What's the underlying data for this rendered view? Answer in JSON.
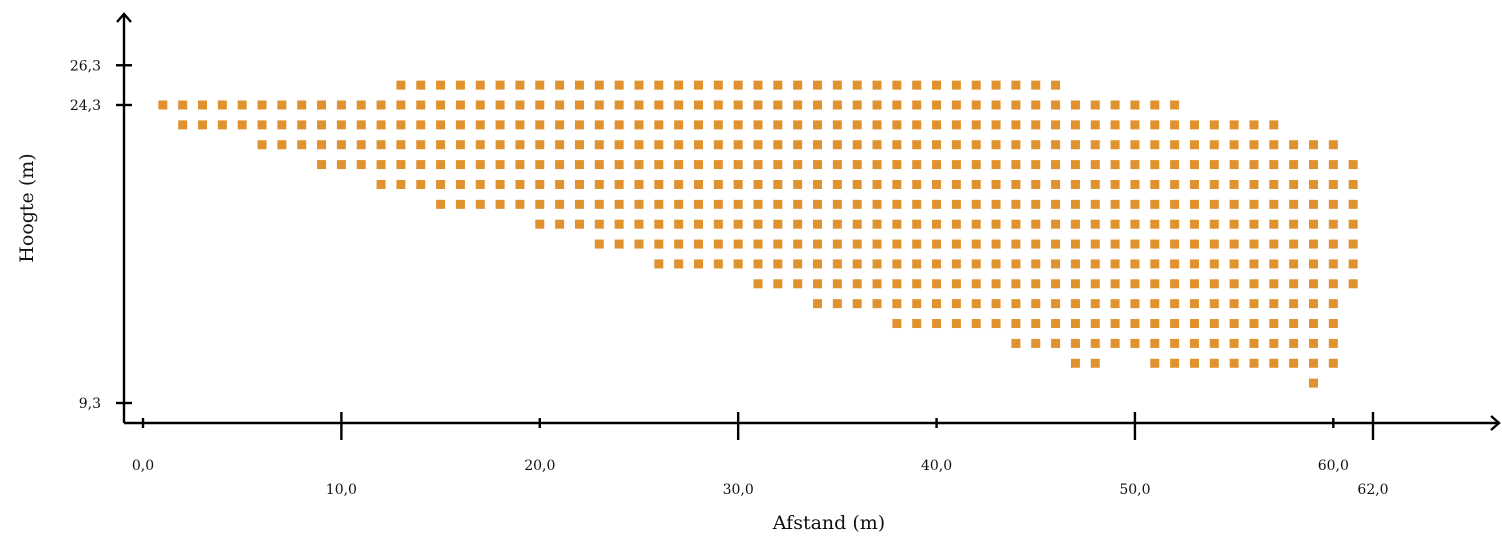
{
  "chart_data": {
    "type": "scatter",
    "title": "",
    "xlabel": "Afstand (m)",
    "ylabel": "Hoogte (m)",
    "x_ticks": [
      "0,0",
      "10,0",
      "20,0",
      "30,0",
      "40,0",
      "50,0",
      "60,0",
      "62,0"
    ],
    "x_tick_values": [
      0,
      10,
      20,
      30,
      40,
      50,
      60,
      62
    ],
    "y_ticks": [
      "26,3",
      "24,3",
      "9,3"
    ],
    "y_tick_values": [
      26.3,
      24.3,
      9.3
    ],
    "xlim": [
      -1.0,
      68.0
    ],
    "ylim": [
      8.3,
      29.3
    ],
    "grid": false,
    "legend": "none",
    "marker": "square",
    "marker_color": "#e0922f",
    "series": [
      {
        "x_step": 1.0,
        "y_step": 1.0,
        "rows": [
          {
            "y": 25.3,
            "x_start": 13,
            "x_end": 46
          },
          {
            "y": 24.3,
            "x_start": 1,
            "x_end": 52
          },
          {
            "y": 23.3,
            "x_start": 2,
            "x_end": 57
          },
          {
            "y": 22.3,
            "x_start": 6,
            "x_end": 60
          },
          {
            "y": 21.3,
            "x_start": 9,
            "x_end": 61
          },
          {
            "y": 20.3,
            "x_start": 12,
            "x_end": 61
          },
          {
            "y": 19.3,
            "x_start": 15,
            "x_end": 61
          },
          {
            "y": 18.3,
            "x_start": 20,
            "x_end": 61
          },
          {
            "y": 17.3,
            "x_start": 23,
            "x_end": 61
          },
          {
            "y": 16.3,
            "x_start": 26,
            "x_end": 61
          },
          {
            "y": 15.3,
            "x_start": 31,
            "x_end": 61
          },
          {
            "y": 14.3,
            "x_start": 34,
            "x_end": 60
          },
          {
            "y": 13.3,
            "x_start": 38,
            "x_end": 60
          },
          {
            "y": 12.3,
            "x_start": 44,
            "x_end": 60
          },
          {
            "y": 11.3,
            "x_start": 47,
            "x_end": 48
          },
          {
            "y": 11.3,
            "x_start": 51,
            "x_end": 60
          },
          {
            "y": 10.3,
            "x_start": 59,
            "x_end": 59
          }
        ]
      }
    ]
  }
}
